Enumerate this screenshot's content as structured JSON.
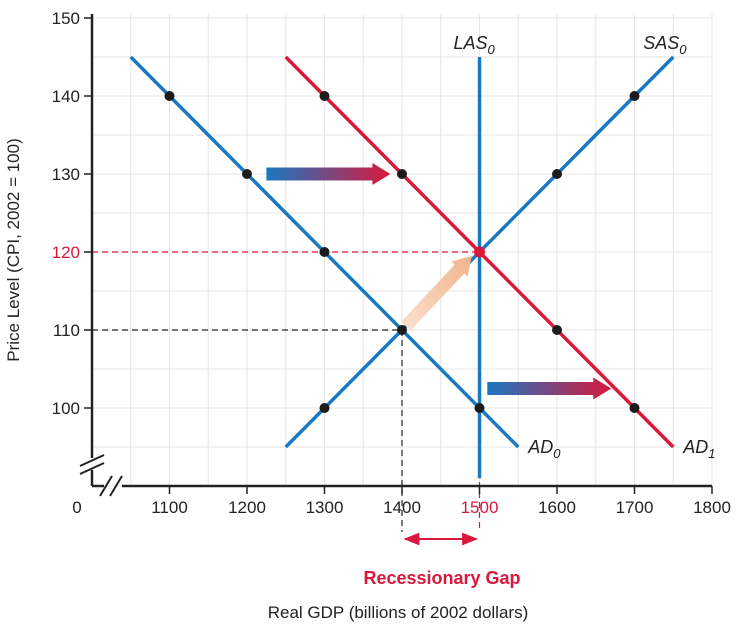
{
  "chart_data": {
    "type": "line",
    "xlabel": "Real GDP (billions of 2002 dollars)",
    "ylabel": "Price Level (CPI, 2002 = 100)",
    "origin_label": "0",
    "xlim": [
      1000,
      1800
    ],
    "ylim": [
      90,
      150
    ],
    "x_ticks": [
      1100,
      1200,
      1300,
      1400,
      1500,
      1600,
      1700,
      1800
    ],
    "y_ticks": [
      100,
      110,
      120,
      130,
      140,
      150
    ],
    "grid": true,
    "highlight_color": "#d9183b",
    "blue_color": "#1a78c2",
    "series": [
      {
        "name": "AD0",
        "label_main": "AD",
        "label_sub": "0",
        "color": "#1a78c2",
        "line": [
          [
            1050,
            145
          ],
          [
            1550,
            95
          ]
        ],
        "points": [
          [
            1100,
            140
          ],
          [
            1200,
            130
          ],
          [
            1300,
            120
          ],
          [
            1400,
            110
          ],
          [
            1500,
            100
          ]
        ]
      },
      {
        "name": "AD1",
        "label_main": "AD",
        "label_sub": "1",
        "color": "#d9183b",
        "line": [
          [
            1250,
            145
          ],
          [
            1750,
            95
          ]
        ],
        "points": [
          [
            1300,
            140
          ],
          [
            1400,
            130
          ],
          [
            1500,
            120
          ],
          [
            1600,
            110
          ],
          [
            1700,
            100
          ]
        ]
      },
      {
        "name": "SAS0",
        "label_main": "SAS",
        "label_sub": "0",
        "color": "#1a78c2",
        "line": [
          [
            1250,
            95
          ],
          [
            1750,
            145
          ]
        ],
        "points": [
          [
            1300,
            100
          ],
          [
            1400,
            110
          ],
          [
            1500,
            120
          ],
          [
            1600,
            130
          ],
          [
            1700,
            140
          ]
        ]
      },
      {
        "name": "LAS0",
        "label_main": "LAS",
        "label_sub": "0",
        "color": "#1a78c2",
        "line": [
          [
            1500,
            91
          ],
          [
            1500,
            145
          ]
        ],
        "points": [
          [
            1500,
            100
          ]
        ]
      }
    ],
    "equilibria": [
      {
        "x": 1400,
        "y": 110,
        "guide_color": "#222"
      },
      {
        "x": 1500,
        "y": 120,
        "guide_color": "#d9183b"
      }
    ],
    "shift_arrows": [
      {
        "from": [
          1225,
          130
        ],
        "to": [
          1385,
          130
        ]
      },
      {
        "from": [
          1510,
          102.5
        ],
        "to": [
          1670,
          102.5
        ]
      }
    ],
    "movement_arrow": {
      "from": [
        1405,
        110.5
      ],
      "to": [
        1490,
        119.5
      ]
    },
    "annotation": {
      "text": "Recessionary Gap",
      "from_x": 1400,
      "to_x": 1500
    }
  }
}
